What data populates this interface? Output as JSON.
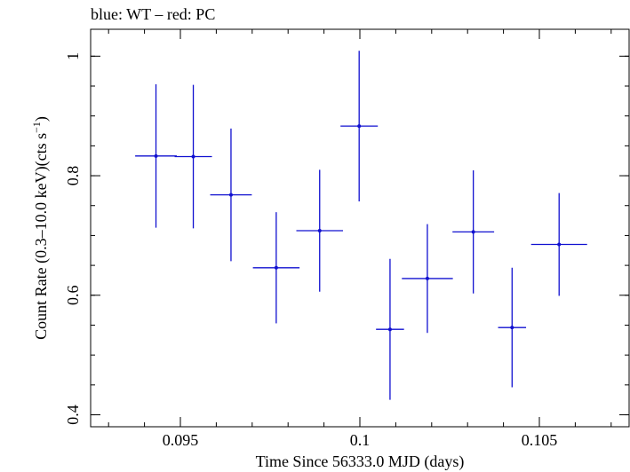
{
  "chart_data": {
    "type": "scatter",
    "title": "blue: WT – red: PC",
    "xlabel": "Time Since 56333.0 MJD (days)",
    "ylabel": "Count Rate (0.3–10.0 keV)(cts s",
    "ylabel_sup": "−1",
    "ylabel_close": ")",
    "xlim": [
      0.0925,
      0.1075
    ],
    "ylim": [
      0.38,
      1.045
    ],
    "x_ticks": [
      {
        "value": 0.095,
        "label": "0.095"
      },
      {
        "value": 0.1,
        "label": "0.1"
      },
      {
        "value": 0.105,
        "label": "0.105"
      }
    ],
    "y_ticks": [
      {
        "value": 0.4,
        "label": "0.4"
      },
      {
        "value": 0.6,
        "label": "0.6"
      },
      {
        "value": 0.8,
        "label": "0.8"
      },
      {
        "value": 1.0,
        "label": "1"
      }
    ],
    "x_minor_step": 0.001,
    "y_minor_step": 0.05,
    "grid": false,
    "series": [
      {
        "color": "#1010d0",
        "points": [
          {
            "x": 0.09432,
            "xerr": 0.00058,
            "y": 0.833,
            "yerr": 0.12
          },
          {
            "x": 0.09536,
            "xerr": 0.00052,
            "y": 0.832,
            "yerr": 0.12
          },
          {
            "x": 0.09641,
            "xerr": 0.00058,
            "y": 0.768,
            "yerr": 0.111
          },
          {
            "x": 0.09767,
            "xerr": 0.00065,
            "y": 0.646,
            "yerr": 0.093
          },
          {
            "x": 0.09888,
            "xerr": 0.00065,
            "y": 0.708,
            "yerr": 0.102
          },
          {
            "x": 0.09998,
            "xerr": 0.00052,
            "y": 0.883,
            "yerr": 0.126
          },
          {
            "x": 0.10084,
            "xerr": 0.00039,
            "y": 0.543,
            "yerr": 0.118
          },
          {
            "x": 0.10188,
            "xerr": 0.00071,
            "y": 0.628,
            "yerr": 0.091
          },
          {
            "x": 0.10316,
            "xerr": 0.00058,
            "y": 0.706,
            "yerr": 0.103
          },
          {
            "x": 0.10424,
            "xerr": 0.00039,
            "y": 0.546,
            "yerr": 0.1
          },
          {
            "x": 0.10555,
            "xerr": 0.00078,
            "y": 0.685,
            "yerr": 0.086
          }
        ]
      }
    ]
  }
}
